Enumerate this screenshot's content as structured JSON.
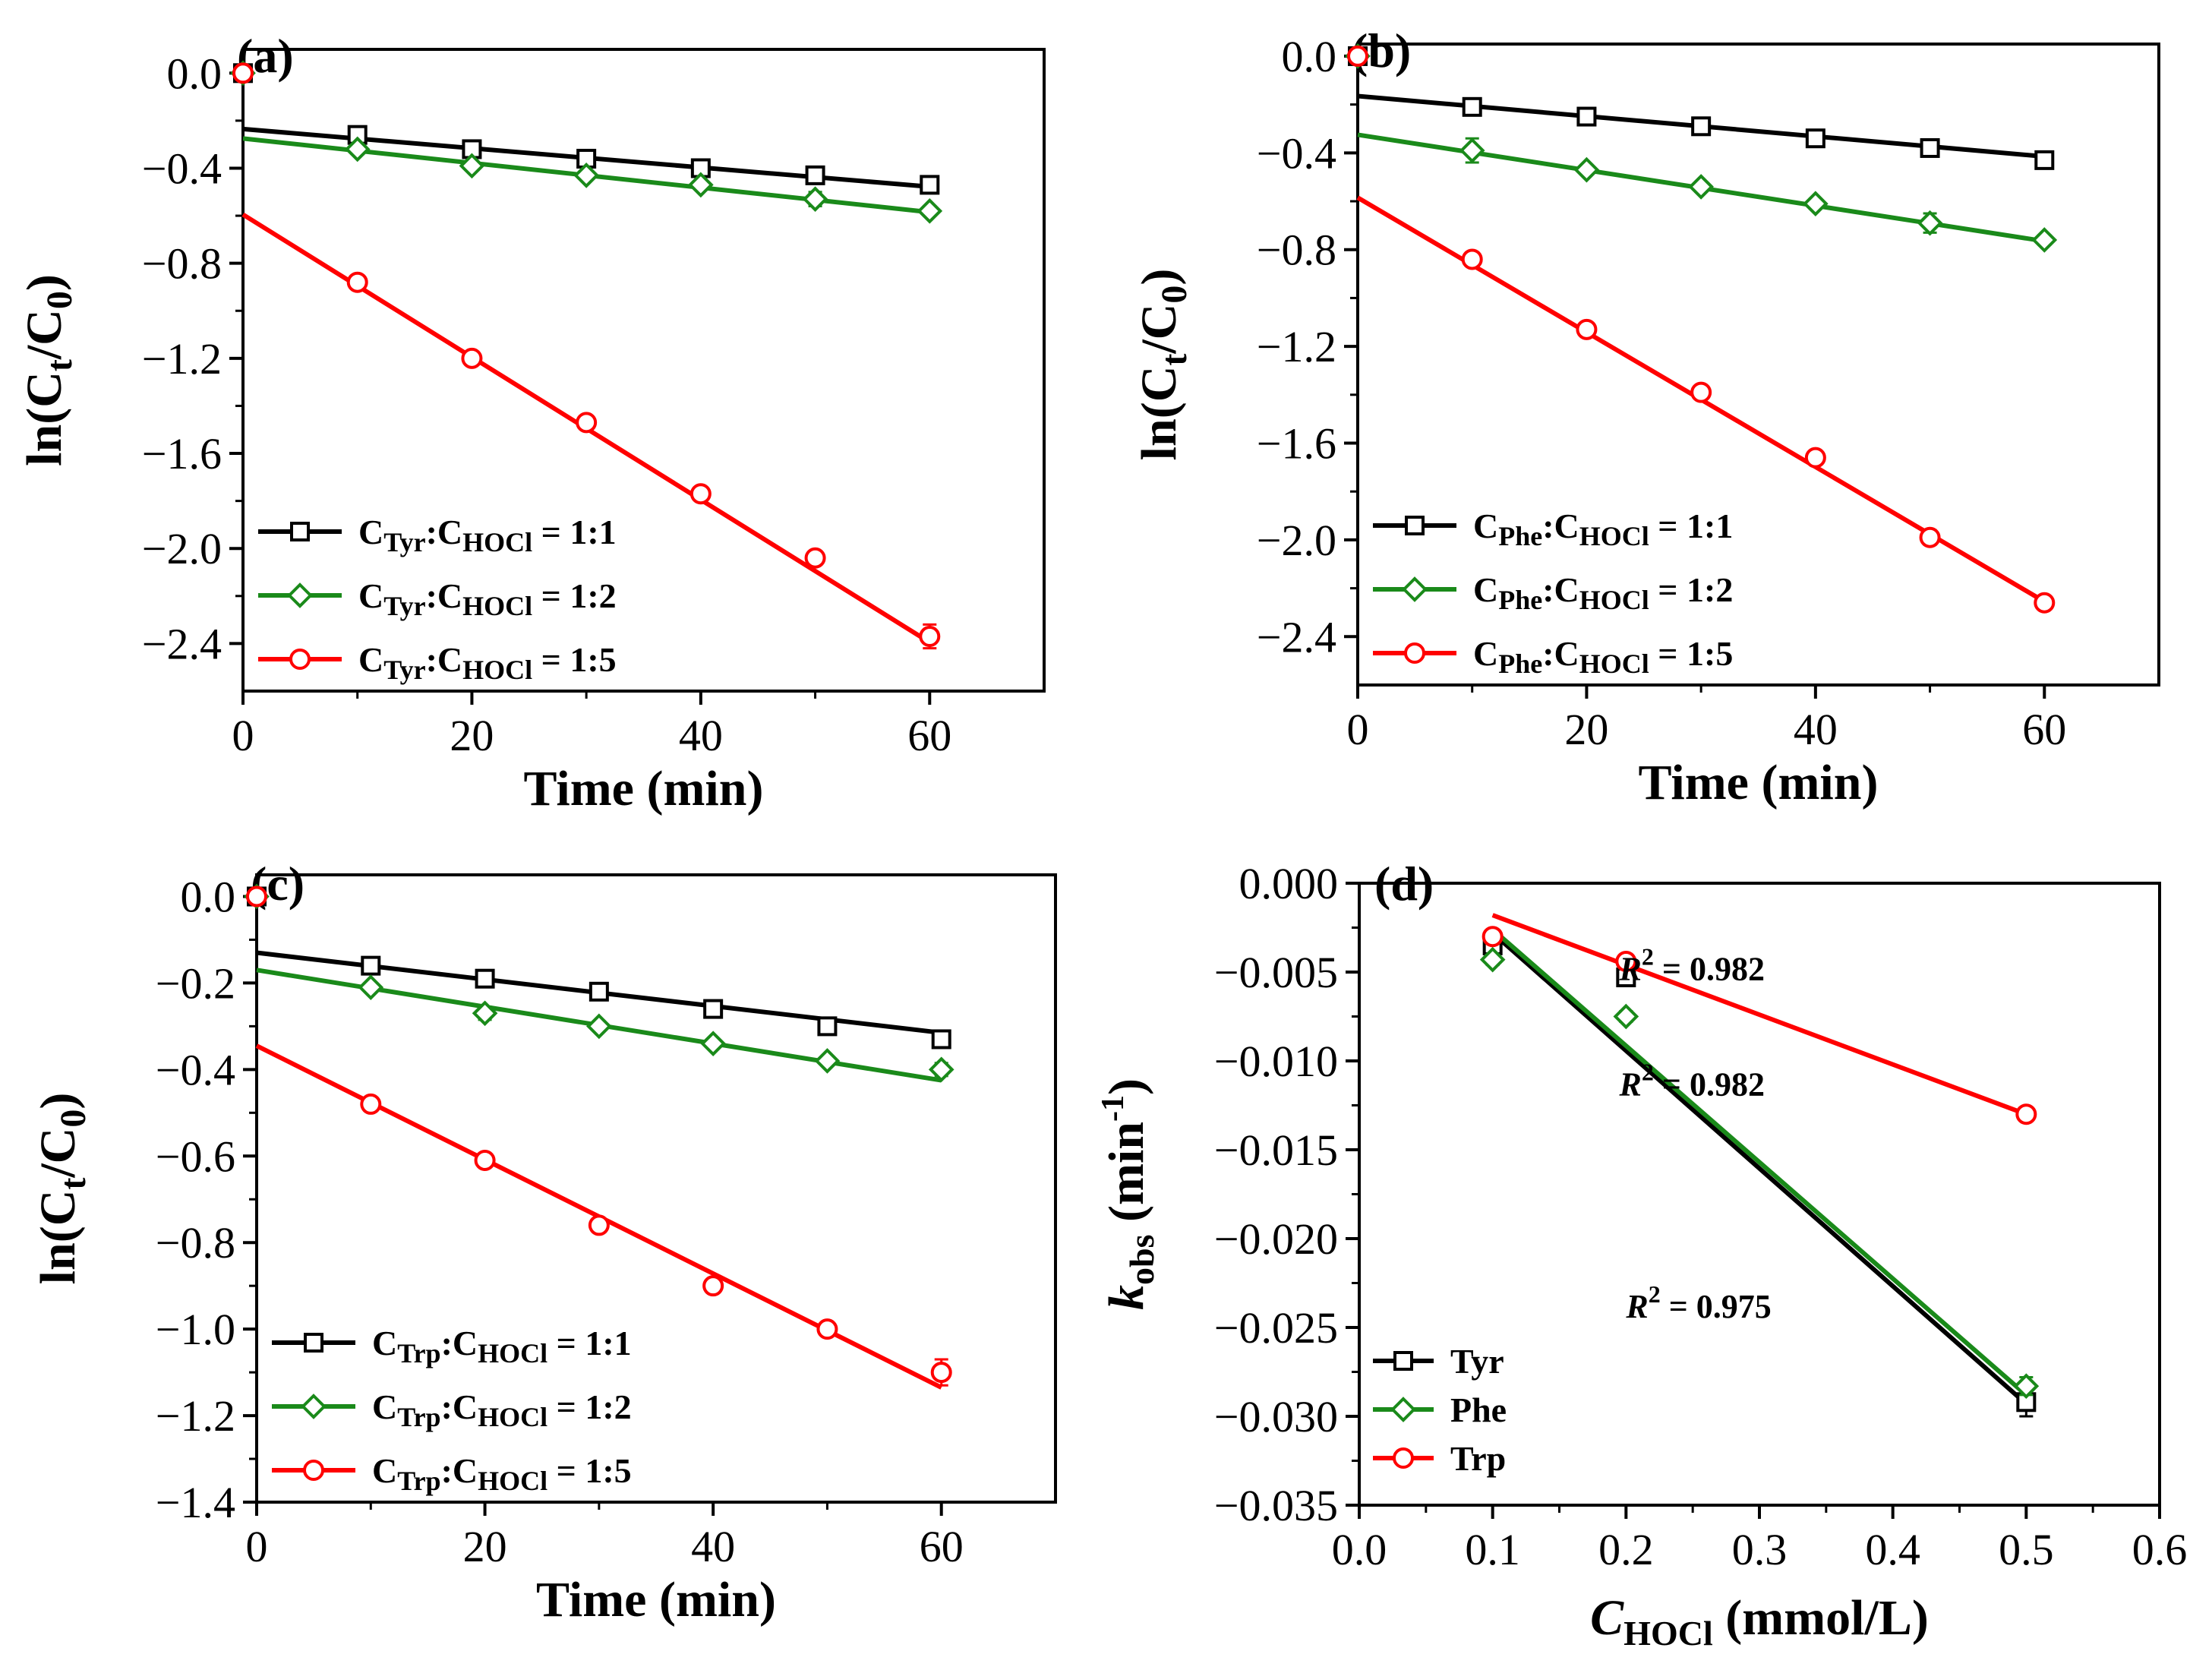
{
  "colors": {
    "black": "#000000",
    "green": "#1a8a1a",
    "red": "#ff0000"
  },
  "chart_data": [
    {
      "panel": "(a)",
      "type": "line",
      "xlabel": "Time (min)",
      "ylabel": "ln(C_t/C_0)",
      "ylabel_parts": {
        "main": "ln(C",
        "sub1": "t",
        "mid": "/C",
        "sub2": "0",
        "end": ")"
      },
      "xlim": [
        0,
        70
      ],
      "ylim": [
        -2.6,
        0.1
      ],
      "xticks": [
        0,
        20,
        40,
        60
      ],
      "yticks": [
        0.0,
        -0.4,
        -0.8,
        -1.2,
        -1.6,
        -2.0,
        -2.4
      ],
      "xtick_labels": [
        "0",
        "20",
        "40",
        "60"
      ],
      "ytick_labels": [
        "0.0",
        "−0.4",
        "−0.8",
        "−1.2",
        "−1.6",
        "−2.0",
        "−2.4"
      ],
      "legend_position": "bottom-left",
      "series": [
        {
          "name": "CTyr:CHOCl = 1:1",
          "label": {
            "s1": "Tyr",
            "s2": "HOCl",
            "ratio": " = 1:1"
          },
          "color": "#000000",
          "marker": "square",
          "x": [
            0,
            10,
            20,
            30,
            40,
            50,
            60
          ],
          "y": [
            0,
            -0.26,
            -0.32,
            -0.36,
            -0.4,
            -0.43,
            -0.47
          ],
          "err": [
            0,
            0.02,
            0.02,
            0.02,
            0.02,
            0.02,
            0.02
          ],
          "fit": [
            -0.235,
            -0.478
          ]
        },
        {
          "name": "CTyr:CHOCl = 1:2",
          "label": {
            "s1": "Tyr",
            "s2": "HOCl",
            "ratio": " = 1:2"
          },
          "color": "#1a8a1a",
          "marker": "diamond",
          "x": [
            0,
            10,
            20,
            30,
            40,
            50,
            60
          ],
          "y": [
            0,
            -0.32,
            -0.39,
            -0.43,
            -0.47,
            -0.53,
            -0.58
          ],
          "err": [
            0,
            0.02,
            0.02,
            0.02,
            0.02,
            0.03,
            0.02
          ],
          "fit": [
            -0.275,
            -0.585
          ]
        },
        {
          "name": "CTyr:CHOCl = 1:5",
          "label": {
            "s1": "Tyr",
            "s2": "HOCl",
            "ratio": " = 1:5"
          },
          "color": "#ff0000",
          "marker": "circle",
          "x": [
            0,
            10,
            20,
            30,
            40,
            50,
            60
          ],
          "y": [
            0,
            -0.88,
            -1.2,
            -1.47,
            -1.77,
            -2.04,
            -2.37
          ],
          "err": [
            0,
            0.02,
            0.02,
            0.02,
            0.02,
            0.02,
            0.05
          ],
          "fit": [
            -0.595,
            -2.395
          ]
        }
      ]
    },
    {
      "panel": "(b)",
      "type": "line",
      "xlabel": "Time (min)",
      "ylabel": "ln(C_t/C_0)",
      "ylabel_parts": {
        "main": "ln(C",
        "sub1": "t",
        "mid": "/C",
        "sub2": "0",
        "end": ")"
      },
      "xlim": [
        0,
        70
      ],
      "ylim": [
        -2.6,
        0.05
      ],
      "xticks": [
        0,
        20,
        40,
        60
      ],
      "yticks": [
        0.0,
        -0.4,
        -0.8,
        -1.2,
        -1.6,
        -2.0,
        -2.4
      ],
      "xtick_labels": [
        "0",
        "20",
        "40",
        "60"
      ],
      "ytick_labels": [
        "0.0",
        "−0.4",
        "−0.8",
        "−1.2",
        "−1.6",
        "−2.0",
        "−2.4"
      ],
      "legend_position": "bottom-left",
      "series": [
        {
          "name": "CPhe:CHOCl = 1:1",
          "label": {
            "s1": "Phe",
            "s2": "HOCl",
            "ratio": " = 1:1"
          },
          "color": "#000000",
          "marker": "square",
          "x": [
            0,
            10,
            20,
            30,
            40,
            50,
            60
          ],
          "y": [
            0,
            -0.21,
            -0.25,
            -0.29,
            -0.34,
            -0.38,
            -0.43
          ],
          "err": [
            0,
            0.02,
            0.02,
            0.02,
            0.02,
            0.02,
            0.02
          ],
          "fit": [
            -0.165,
            -0.415
          ]
        },
        {
          "name": "CPhe:CHOCl = 1:2",
          "label": {
            "s1": "Phe",
            "s2": "HOCl",
            "ratio": " = 1:2"
          },
          "color": "#1a8a1a",
          "marker": "diamond",
          "x": [
            0,
            10,
            20,
            30,
            40,
            50,
            60
          ],
          "y": [
            0,
            -0.39,
            -0.47,
            -0.54,
            -0.61,
            -0.69,
            -0.76
          ],
          "err": [
            0,
            0.05,
            0.02,
            0.02,
            0.02,
            0.04,
            0.02
          ],
          "fit": [
            -0.325,
            -0.765
          ]
        },
        {
          "name": "CPhe:CHOCl = 1:5",
          "label": {
            "s1": "Phe",
            "s2": "HOCl",
            "ratio": " = 1:5"
          },
          "color": "#ff0000",
          "marker": "circle",
          "x": [
            0,
            10,
            20,
            30,
            40,
            50,
            60
          ],
          "y": [
            0,
            -0.84,
            -1.13,
            -1.39,
            -1.66,
            -1.99,
            -2.26
          ],
          "err": [
            0,
            0.02,
            0.02,
            0.02,
            0.02,
            0.03,
            0.02
          ],
          "fit": [
            -0.585,
            -2.255
          ]
        }
      ]
    },
    {
      "panel": "(c)",
      "type": "line",
      "xlabel": "Time (min)",
      "ylabel": "ln(C_t/C_0)",
      "ylabel_parts": {
        "main": "ln(C",
        "sub1": "t",
        "mid": "/C",
        "sub2": "0",
        "end": ")"
      },
      "xlim": [
        0,
        70
      ],
      "ylim": [
        -1.4,
        0.05
      ],
      "xticks": [
        0,
        20,
        40,
        60
      ],
      "yticks": [
        0.0,
        -0.2,
        -0.4,
        -0.6,
        -0.8,
        -1.0,
        -1.2,
        -1.4
      ],
      "xtick_labels": [
        "0",
        "20",
        "40",
        "60"
      ],
      "ytick_labels": [
        "0.0",
        "−0.2",
        "−0.4",
        "−0.6",
        "−0.8",
        "−1.0",
        "−1.2",
        "−1.4"
      ],
      "legend_position": "bottom-left",
      "series": [
        {
          "name": "CTrp:CHOCl = 1:1",
          "label": {
            "s1": "Trp",
            "s2": "HOCl",
            "ratio": " = 1:1"
          },
          "color": "#000000",
          "marker": "square",
          "x": [
            0,
            10,
            20,
            30,
            40,
            50,
            60
          ],
          "y": [
            0,
            -0.16,
            -0.19,
            -0.22,
            -0.26,
            -0.3,
            -0.33
          ],
          "err": [
            0,
            0.01,
            0.01,
            0.01,
            0.01,
            0.01,
            0.015
          ],
          "fit": [
            -0.13,
            -0.315
          ]
        },
        {
          "name": "CTrp:CHOCl = 1:2",
          "label": {
            "s1": "Trp",
            "s2": "HOCl",
            "ratio": " = 1:2"
          },
          "color": "#1a8a1a",
          "marker": "diamond",
          "x": [
            0,
            10,
            20,
            30,
            40,
            50,
            60
          ],
          "y": [
            0,
            -0.21,
            -0.27,
            -0.3,
            -0.34,
            -0.38,
            -0.4
          ],
          "err": [
            0,
            0.01,
            0.015,
            0.01,
            0.01,
            0.01,
            0.015
          ],
          "fit": [
            -0.17,
            -0.425
          ]
        },
        {
          "name": "CTrp:CHOCl = 1:5",
          "label": {
            "s1": "Trp",
            "s2": "HOCl",
            "ratio": " = 1:5"
          },
          "color": "#ff0000",
          "marker": "circle",
          "x": [
            0,
            10,
            20,
            30,
            40,
            50,
            60
          ],
          "y": [
            0,
            -0.48,
            -0.61,
            -0.76,
            -0.9,
            -1.0,
            -1.1
          ],
          "err": [
            0,
            0.01,
            0.01,
            0.01,
            0.015,
            0.01,
            0.03
          ],
          "fit": [
            -0.345,
            -1.135
          ]
        }
      ]
    },
    {
      "panel": "(d)",
      "type": "scatter",
      "xlabel": "C_HOCl (mmol/L)",
      "xlabel_parts": {
        "main": "C",
        "sub": "HOCl",
        "end": " (mmol/L)"
      },
      "ylabel": "k_obs (min^-1)",
      "ylabel_parts": {
        "main": "k",
        "sub": "obs",
        "mid": " (min",
        "sup": "-1",
        "end": ")"
      },
      "xlim": [
        0.0,
        0.6
      ],
      "ylim": [
        -0.035,
        0.0
      ],
      "xticks": [
        0.0,
        0.1,
        0.2,
        0.3,
        0.4,
        0.5,
        0.6
      ],
      "yticks": [
        0.0,
        -0.005,
        -0.01,
        -0.015,
        -0.02,
        -0.025,
        -0.03,
        -0.035
      ],
      "xtick_labels": [
        "0.0",
        "0.1",
        "0.2",
        "0.3",
        "0.4",
        "0.5",
        "0.6"
      ],
      "ytick_labels": [
        "0.000",
        "−0.005",
        "−0.010",
        "−0.015",
        "−0.020",
        "−0.025",
        "−0.030",
        "−0.035"
      ],
      "legend_position": "bottom-left",
      "annotations": [
        {
          "text_r": "R",
          "text_sup": "2",
          "text_val": " = 0.982",
          "x": 0.195,
          "y": -0.0048
        },
        {
          "text_r": "R",
          "text_sup": "2",
          "text_val": " = 0.982",
          "x": 0.195,
          "y": -0.0113
        },
        {
          "text_r": "R",
          "text_sup": "2",
          "text_val": " = 0.975",
          "x": 0.2,
          "y": -0.0238
        }
      ],
      "series": [
        {
          "name": "Tyr",
          "color": "#000000",
          "marker": "square",
          "x": [
            0.1,
            0.2,
            0.5
          ],
          "y": [
            -0.0035,
            -0.0053,
            -0.0292
          ],
          "err": [
            0.0003,
            0.0003,
            0.0008
          ],
          "fit": [
            [
              0.1,
              -0.0028
            ],
            [
              0.5,
              -0.0293
            ]
          ]
        },
        {
          "name": "Phe",
          "color": "#1a8a1a",
          "marker": "diamond",
          "x": [
            0.1,
            0.2,
            0.5
          ],
          "y": [
            -0.0043,
            -0.0075,
            -0.0283
          ],
          "err": [
            0.0003,
            0.0003,
            0.0005
          ],
          "fit": [
            [
              0.1,
              -0.0026
            ],
            [
              0.5,
              -0.0288
            ]
          ]
        },
        {
          "name": "Trp",
          "color": "#ff0000",
          "marker": "circle",
          "x": [
            0.1,
            0.2,
            0.5
          ],
          "y": [
            -0.003,
            -0.0044,
            -0.013
          ],
          "err": [
            0.0002,
            0.0003,
            0.0003
          ],
          "fit": [
            [
              0.1,
              -0.0018
            ],
            [
              0.5,
              -0.013
            ]
          ]
        }
      ]
    }
  ]
}
